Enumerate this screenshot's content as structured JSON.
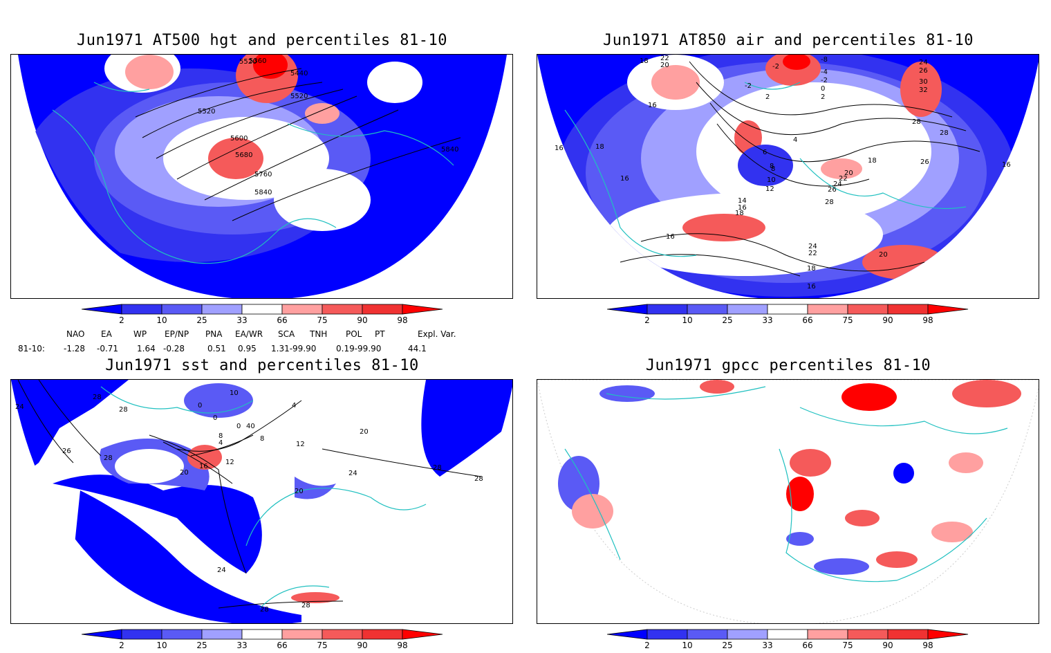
{
  "panels": [
    {
      "title": "Jun1971 AT500 hgt and percentiles 81-10",
      "contour_labels": [
        "5360",
        "5520",
        "5440",
        "5520",
        "5520",
        "5600",
        "5680",
        "5760",
        "5840",
        "5840"
      ]
    },
    {
      "title": "Jun1971 AT850 air and percentiles 81-10",
      "contour_labels": [
        "18",
        "22",
        "20",
        "-8",
        "-2",
        "-4",
        "-2",
        "-2",
        "0",
        "2",
        "2",
        "24",
        "26",
        "30",
        "32",
        "28",
        "28",
        "16",
        "16",
        "18",
        "16",
        "8",
        "4",
        "6",
        "8",
        "10",
        "12",
        "14",
        "16",
        "18",
        "20",
        "22",
        "24",
        "26",
        "28",
        "18",
        "26",
        "16",
        "16",
        "24",
        "22",
        "20",
        "18",
        "16"
      ]
    },
    {
      "title": "Jun1971 sst and percentiles 81-10",
      "contour_labels": [
        "24",
        "28",
        "28",
        "26",
        "28",
        "10",
        "0",
        "0",
        "4",
        "0",
        "40",
        "8",
        "4",
        "8",
        "12",
        "12",
        "16",
        "20",
        "20",
        "24",
        "28",
        "28",
        "20",
        "24",
        "28",
        "28"
      ]
    },
    {
      "title": "Jun1971 gpcc percentiles 81-10",
      "contour_labels": []
    }
  ],
  "colorbar": {
    "ticks": [
      "2",
      "10",
      "25",
      "33",
      "66",
      "75",
      "90",
      "98"
    ],
    "colors": [
      "#0000ff",
      "#3232f0",
      "#5a5af5",
      "#a0a0ff",
      "#ffffff",
      "#ffa0a0",
      "#f55a5a",
      "#f03232",
      "#ff0000"
    ]
  },
  "indices": {
    "headers": [
      "NAO",
      "EA",
      "WP",
      "EP/NP",
      "PNA",
      "EA/WR",
      "SCA",
      "TNH",
      "POL",
      "PT",
      "Expl. Var."
    ],
    "row_label": "81-10:",
    "values": [
      "-1.28",
      "-0.71",
      "1.64",
      "-0.28",
      "0.51",
      "0.95",
      "1.31-99.90",
      "0.19-99.90",
      "44.1"
    ]
  }
}
